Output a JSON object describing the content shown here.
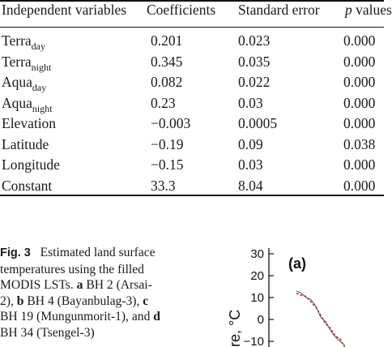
{
  "table": {
    "headers": {
      "independent": "Independent variables",
      "coefficients": "Coefficients",
      "standard_error": "Standard error",
      "p_italic": "p",
      "p_rest": " values"
    },
    "rows": [
      {
        "var": "Terra",
        "sub": "day",
        "coef": "0.201",
        "se": "0.023",
        "p": "0.000"
      },
      {
        "var": "Terra",
        "sub": "night",
        "coef": "0.345",
        "se": "0.035",
        "p": "0.000"
      },
      {
        "var": "Aqua",
        "sub": "day",
        "coef": "0.082",
        "se": "0.022",
        "p": "0.000"
      },
      {
        "var": "Aqua",
        "sub": "night",
        "coef": "0.23",
        "se": "0.03",
        "p": "0.000"
      },
      {
        "var": "Elevation",
        "sub": "",
        "coef": "−0.003",
        "se": "0.0005",
        "p": "0.000"
      },
      {
        "var": "Latitude",
        "sub": "",
        "coef": "−0.19",
        "se": "0.09",
        "p": "0.038"
      },
      {
        "var": "Longitude",
        "sub": "",
        "coef": "−0.15",
        "se": "0.03",
        "p": "0.000"
      },
      {
        "var": "Constant",
        "sub": "",
        "coef": "33.3",
        "se": "8.04",
        "p": "0.000"
      }
    ]
  },
  "caption": {
    "label": "Fig. 3",
    "line1": "Estimated land surface",
    "line2": "temperatures using the filled",
    "line3_pre": "MODIS LSTs. ",
    "a": "a",
    "line3_post": " BH 2 (Arsai-",
    "line4_pre": "2), ",
    "b": "b",
    "line4_post": " BH 4 (Bayanbulag-3), ",
    "c": "c",
    "line5": "BH 19 (Mungunmorit-1), and ",
    "d": "d",
    "line6": "BH 34 (Tsengel-3)"
  },
  "chart_data": {
    "type": "line",
    "panel_label": "(a)",
    "ylabel_fragment": "re, °C",
    "yticks": [
      30,
      20,
      10,
      0,
      -10
    ],
    "ylim": [
      -14,
      30
    ],
    "series": [
      {
        "x": [
          0,
          1,
          2,
          3,
          4,
          5,
          6,
          7,
          8,
          9,
          10
        ],
        "values": [
          12,
          11,
          10.5,
          8,
          5.5,
          2,
          -2,
          -4,
          -7.5,
          -9,
          -13
        ]
      },
      {
        "x": [
          0,
          1,
          2,
          3,
          4,
          5,
          6,
          7,
          8,
          9,
          10
        ],
        "values": [
          13,
          12,
          10,
          9,
          6,
          1,
          -1,
          -5,
          -8,
          -10,
          -12
        ]
      }
    ],
    "colors": {
      "series1": "#c0392b",
      "series2": "#555555"
    }
  }
}
